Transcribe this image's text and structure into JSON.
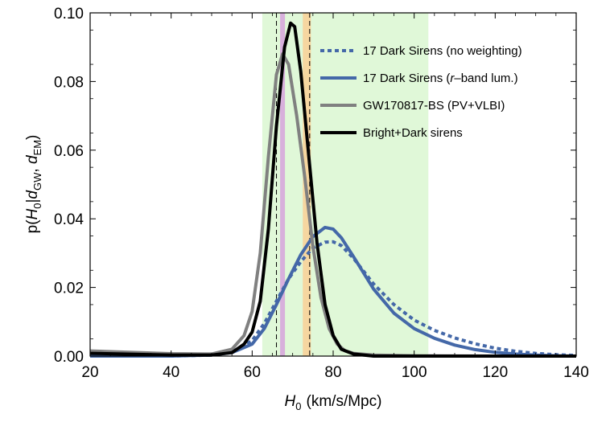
{
  "chart_data": {
    "type": "line",
    "title": "",
    "xlabel": {
      "var": "H",
      "sub": "0",
      "units": "(km/s/Mpc)"
    },
    "ylabel": {
      "pre": "p(",
      "v1": "H",
      "s1": "0",
      "bar": "|",
      "v2": "d",
      "s2": "GW",
      "comma": ", ",
      "v3": "d",
      "s3": "EM",
      "post": ")"
    },
    "xlim": [
      20,
      140
    ],
    "ylim": [
      0,
      0.1
    ],
    "xticks": [
      "20",
      "40",
      "60",
      "80",
      "100",
      "120",
      "140"
    ],
    "yticks": [
      "0.00",
      "0.02",
      "0.04",
      "0.06",
      "0.08",
      "0.10"
    ],
    "bands": [
      {
        "range": [
          62.5,
          103.5
        ],
        "color": "#e0f8d8"
      },
      {
        "range": [
          66.9,
          68.1
        ],
        "color": "#d8b0dc"
      },
      {
        "range": [
          72.5,
          74.5
        ],
        "color": "#f6d6a0"
      }
    ],
    "vlines": [
      66.0,
      74.2
    ],
    "series": [
      {
        "name": "17 Dark Sirens (no weighting)",
        "color": "#4468a8",
        "style": "dotted",
        "x": [
          20,
          40,
          50,
          55,
          60,
          63,
          66,
          69,
          72,
          75,
          78,
          80,
          82,
          85,
          90,
          95,
          100,
          105,
          110,
          115,
          120,
          125,
          130,
          135,
          140
        ],
        "y": [
          0.0,
          0.0,
          0.0003,
          0.0012,
          0.0045,
          0.0095,
          0.016,
          0.0225,
          0.0275,
          0.0315,
          0.0332,
          0.0333,
          0.0322,
          0.0285,
          0.021,
          0.015,
          0.0105,
          0.0075,
          0.0053,
          0.0036,
          0.0023,
          0.0014,
          0.0008,
          0.0004,
          0.0002
        ]
      },
      {
        "name": "17 Dark Sirens (r-band lum.)",
        "name_pre": "17 Dark Sirens (",
        "name_em": "r",
        "name_post": "–band lum.)",
        "color": "#4468a8",
        "style": "solid",
        "x": [
          20,
          40,
          50,
          55,
          60,
          63,
          66,
          69,
          72,
          75,
          78,
          80,
          82,
          85,
          90,
          95,
          100,
          105,
          110,
          115,
          120,
          125,
          130,
          135,
          140
        ],
        "y": [
          0.0,
          0.0,
          0.0003,
          0.001,
          0.0035,
          0.008,
          0.015,
          0.0225,
          0.0295,
          0.0348,
          0.0375,
          0.037,
          0.0345,
          0.029,
          0.0195,
          0.0125,
          0.008,
          0.0052,
          0.0032,
          0.0019,
          0.0011,
          0.0006,
          0.0003,
          0.0001,
          0.0
        ]
      },
      {
        "name": "GW170817-BS (PV+VLBI)",
        "color": "#808080",
        "style": "solid",
        "x": [
          20,
          40,
          50,
          55,
          58,
          60,
          62,
          64,
          66,
          67.5,
          69,
          71,
          73,
          75,
          77,
          79,
          81,
          83,
          85,
          90,
          100,
          120,
          140
        ],
        "y": [
          0.0015,
          0.0007,
          0.0006,
          0.002,
          0.006,
          0.013,
          0.03,
          0.058,
          0.082,
          0.088,
          0.085,
          0.07,
          0.052,
          0.032,
          0.017,
          0.008,
          0.0035,
          0.0015,
          0.0008,
          0.0003,
          0.0001,
          0.0,
          0.0
        ]
      },
      {
        "name": "Bright+Dark sirens",
        "color": "#000000",
        "style": "solid",
        "x": [
          20,
          40,
          50,
          55,
          58,
          60,
          62,
          64,
          66,
          68,
          69.5,
          70.5,
          72,
          74,
          76,
          78,
          80,
          82,
          85,
          90,
          100,
          140
        ],
        "y": [
          0.0008,
          0.0003,
          0.0003,
          0.001,
          0.0035,
          0.007,
          0.016,
          0.037,
          0.067,
          0.09,
          0.097,
          0.096,
          0.083,
          0.058,
          0.033,
          0.015,
          0.006,
          0.002,
          0.0006,
          0.0,
          0.0,
          0.0
        ]
      }
    ],
    "legend": {
      "position": "top-right"
    }
  }
}
